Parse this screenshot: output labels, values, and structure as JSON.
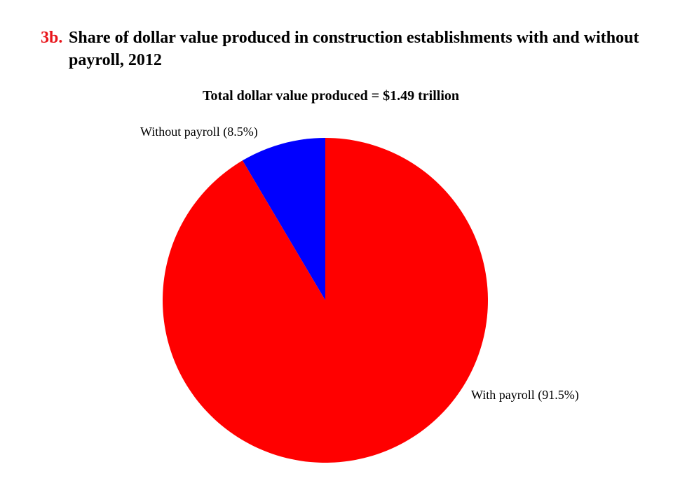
{
  "slide": {
    "number": "3b.",
    "title": "Share of dollar value produced in construction establishments with and without payroll, 2012"
  },
  "chart_data": {
    "type": "pie",
    "title": "Share of dollar value produced in construction establishments with and without payroll, 2012",
    "subtitle": "Total dollar value produced = $1.49 trillion",
    "slices": [
      {
        "name": "Without payroll",
        "value": 8.5,
        "label": "Without payroll (8.5%)",
        "color": "#0000ff"
      },
      {
        "name": "With payroll",
        "value": 91.5,
        "label": "With payroll (91.5%)",
        "color": "#ff0000"
      }
    ],
    "start_angle": "12 o'clock",
    "direction": "counter-clockwise",
    "unit": "%"
  }
}
